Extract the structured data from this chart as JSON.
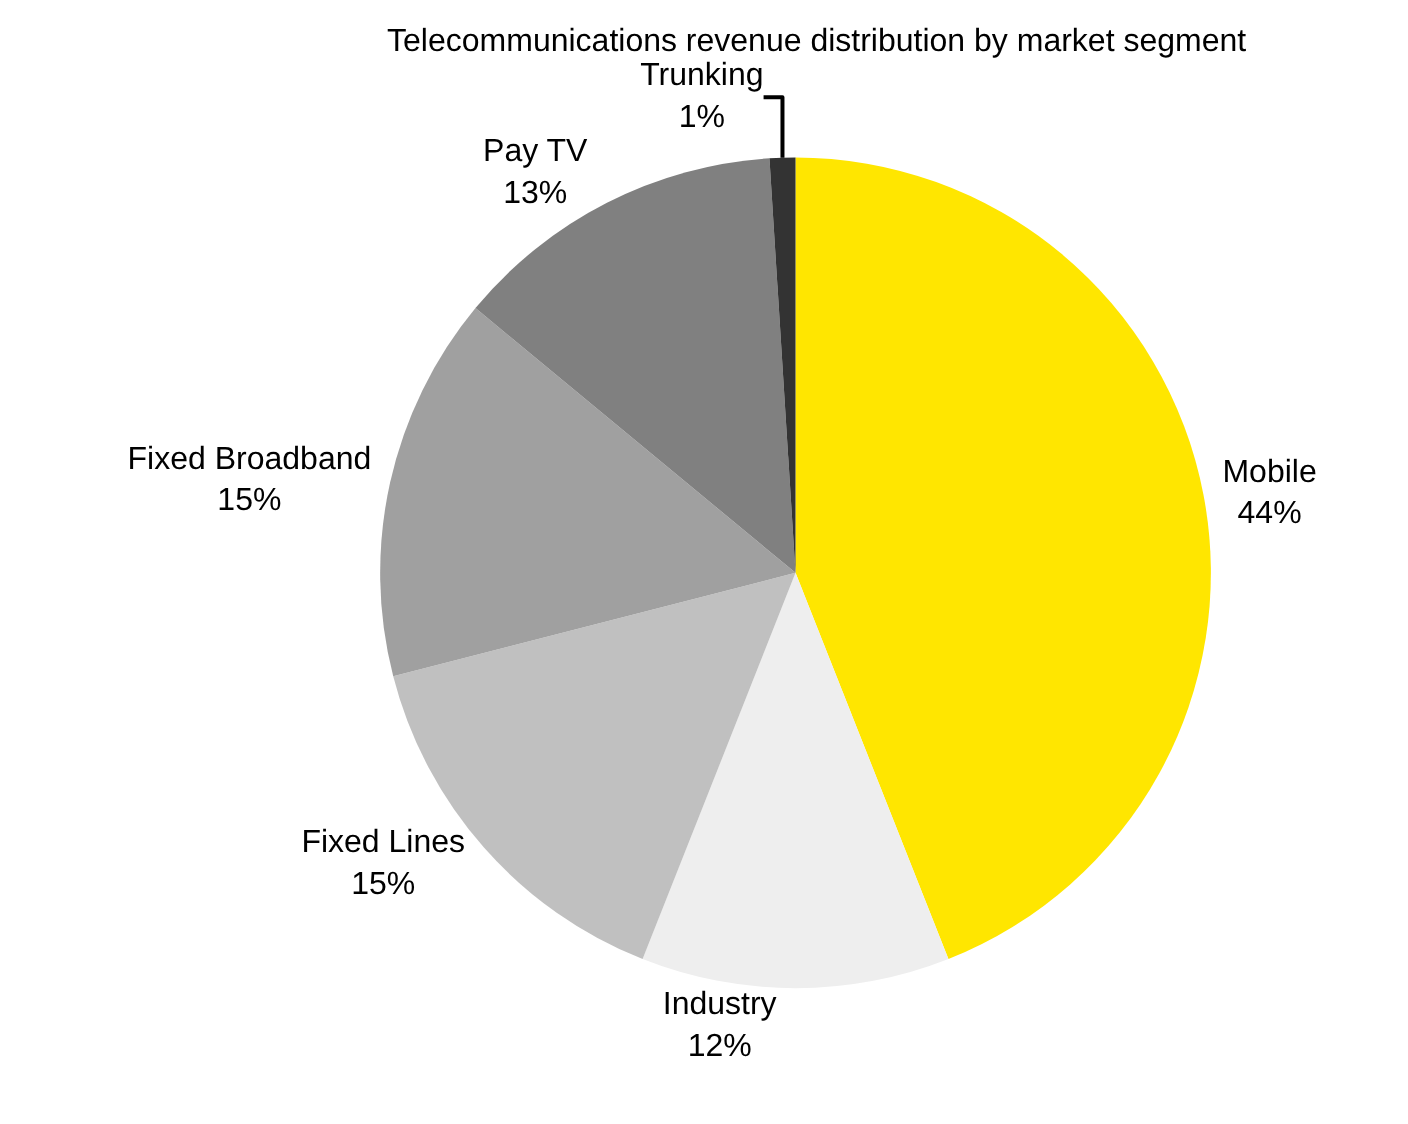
{
  "chart_data": {
    "type": "pie",
    "title": "Telecommunications revenue distribution by market segment",
    "categories": [
      "Mobile",
      "Industry",
      "Fixed Lines",
      "Fixed Broadband",
      "Pay TV",
      "Trunking"
    ],
    "values": [
      44,
      12,
      15,
      15,
      13,
      1
    ],
    "value_labels": [
      "44%",
      "12%",
      "15%",
      "15%",
      "13%",
      "1%"
    ],
    "colors": [
      "#ffe600",
      "#eeeeee",
      "#c0c0c0",
      "#a0a0a0",
      "#808080",
      "#333333"
    ],
    "legend": false
  }
}
